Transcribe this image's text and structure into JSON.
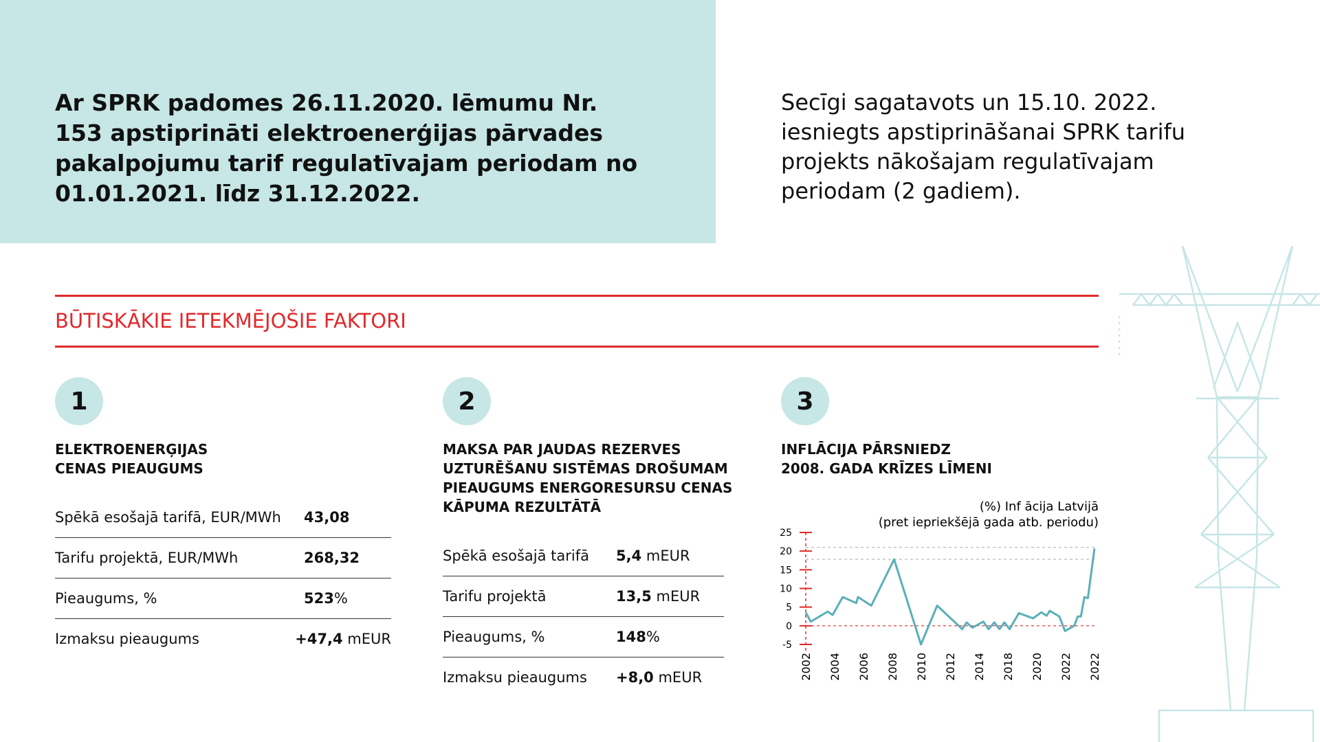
{
  "header": {
    "left_lines": [
      "Ar SPRK padomes 26.11.2020. lēmumu Nr.",
      "153 apstiprināti elektroenerģijas pārvades",
      "pakalpojumu tarif  regulatīvajam periodam no",
      "01.01.2021. līdz 31.12.2022."
    ],
    "right_lines": [
      "Secīgi sagatavots un 15.10. 2022.",
      "iesniegts apstiprināšanai SPRK tarifu",
      "projekts nākošajam regulatīvajam",
      "periodam (2 gadiem)."
    ]
  },
  "section_title": "BŪTISKĀKIE IETEKMĒJOŠIE FAKTORI",
  "factors": [
    {
      "number": "1",
      "title_lines": [
        "ELEKTROENERĢIJAS",
        "CENAS PIEAUGUMS"
      ],
      "rows": [
        {
          "label": "Spēkā esošajā tarifā, EUR/MWh",
          "value": "43,08"
        },
        {
          "label": "Tarifu projektā, EUR/MWh",
          "value": "268,32"
        },
        {
          "label": "Pieaugums, %",
          "value": "523",
          "unit": "%"
        },
        {
          "label": "Izmaksu pieaugums",
          "value": "+47,4",
          "unit": " mEUR"
        }
      ]
    },
    {
      "number": "2",
      "title_lines": [
        "MAKSA PAR JAUDAS REZERVES",
        "UZTURĒŠANU SISTĒMAS DROŠUMAM",
        "PIEAUGUMS ENERGORESURSU CENAS",
        "KĀPUMA REZULTĀTĀ"
      ],
      "rows": [
        {
          "label": "Spēkā esošajā tarifā",
          "value": "5,4",
          "unit": " mEUR"
        },
        {
          "label": "Tarifu projektā",
          "value": "13,5",
          "unit": " mEUR"
        },
        {
          "label": "Pieaugums, %",
          "value": "148",
          "unit": "%"
        },
        {
          "label": "Izmaksu pieaugums",
          "value": "+8,0",
          "unit": " mEUR"
        }
      ]
    },
    {
      "number": "3",
      "title_lines": [
        "INFLĀCIJA PĀRSNIEDZ",
        "2008. GADA KRĪZES LĪMENI"
      ]
    }
  ],
  "chart_data": {
    "type": "line",
    "title_lines": [
      "(%) Inf ācija Latvijā",
      "(pret iepriekšējā gada atb. periodu)"
    ],
    "x": [
      0,
      0.17,
      0.76,
      0.93,
      1.28,
      1.75,
      1.81,
      2.27,
      3.06,
      3.99,
      4.55,
      5.42,
      5.57,
      5.77,
      6.15,
      6.33,
      6.53,
      6.71,
      6.88,
      7.06,
      7.38,
      7.87,
      8.16,
      8.34,
      8.45,
      8.78,
      8.98,
      9.3,
      9.42,
      9.53,
      9.65,
      9.77,
      10
    ],
    "values": [
      3.6,
      1.1,
      3.8,
      2.9,
      7.7,
      6.1,
      7.7,
      5.4,
      17.8,
      -5,
      5.4,
      -0.9,
      0.9,
      -0.5,
      1.1,
      -0.9,
      0.9,
      -0.9,
      0.9,
      -0.9,
      3.4,
      2,
      3.6,
      2.7,
      4,
      2.5,
      -1.4,
      0,
      2.5,
      2.5,
      7.7,
      7.4,
      20.7
    ],
    "color": "#5aafb8",
    "xlim": [
      0,
      10
    ],
    "xticks": [
      {
        "value": 0,
        "label": "2002"
      },
      {
        "value": 1,
        "label": "2004"
      },
      {
        "value": 2,
        "label": "2006"
      },
      {
        "value": 3,
        "label": "2008"
      },
      {
        "value": 4,
        "label": "2010"
      },
      {
        "value": 5,
        "label": "2012"
      },
      {
        "value": 6,
        "label": "2014"
      },
      {
        "value": 7,
        "label": "2018"
      },
      {
        "value": 8,
        "label": "2020"
      },
      {
        "value": 9,
        "label": "2022"
      },
      {
        "value": 10,
        "label": "2022"
      }
    ],
    "ylim": [
      -5,
      25
    ],
    "yticks": [
      25,
      20,
      15,
      10,
      5,
      0,
      -5
    ],
    "reference_lines": [
      21,
      17.8
    ]
  }
}
